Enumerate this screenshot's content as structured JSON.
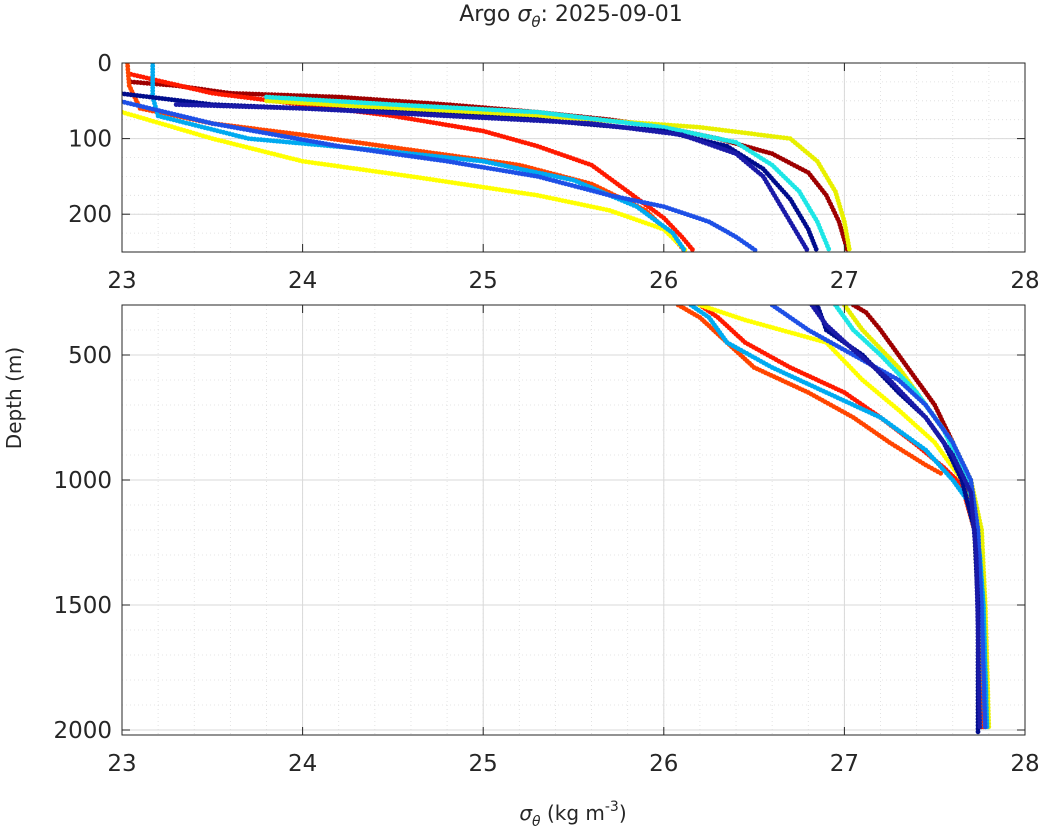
{
  "chart_data": {
    "type": "scatter",
    "title": {
      "prefix": "Argo ",
      "symbol": "σ",
      "subscript": "θ",
      "suffix": ": 2025-09-01"
    },
    "xlabel": {
      "symbol": "σ",
      "subscript": "θ",
      "units": " (kg m",
      "exponent": "-3",
      "close": ")"
    },
    "ylabel": "Depth (m)",
    "grid": true,
    "panels": [
      {
        "name": "upper",
        "xlim": [
          23,
          28
        ],
        "ylim": [
          0,
          250
        ],
        "xticks": [
          23,
          24,
          25,
          26,
          27,
          28
        ],
        "xtick_labels": [
          "23",
          "24",
          "25",
          "26",
          "27",
          "28"
        ],
        "yticks": [
          0,
          100,
          200
        ],
        "ytick_labels": [
          "0",
          "100",
          "200"
        ]
      },
      {
        "name": "lower",
        "xlim": [
          23,
          28
        ],
        "ylim": [
          300,
          2020
        ],
        "xticks": [
          23,
          24,
          25,
          26,
          27,
          28
        ],
        "xtick_labels": [
          "23",
          "24",
          "25",
          "26",
          "27",
          "28"
        ],
        "yticks": [
          500,
          1000,
          1500,
          2000
        ],
        "ytick_labels": [
          "500",
          "1000",
          "1500",
          "2000"
        ]
      }
    ],
    "series": [
      {
        "name": "profile-dark-red",
        "color": "#9e0000",
        "points": [
          [
            23.05,
            25
          ],
          [
            23.3,
            30
          ],
          [
            23.6,
            40
          ],
          [
            24.2,
            45
          ],
          [
            24.8,
            55
          ],
          [
            25.3,
            65
          ],
          [
            25.7,
            75
          ],
          [
            26.0,
            85
          ],
          [
            26.3,
            100
          ],
          [
            26.6,
            120
          ],
          [
            26.8,
            145
          ],
          [
            26.9,
            175
          ],
          [
            26.97,
            210
          ],
          [
            27.02,
            250
          ],
          [
            27.05,
            300
          ],
          [
            27.12,
            330
          ],
          [
            27.2,
            400
          ],
          [
            27.3,
            500
          ],
          [
            27.4,
            600
          ],
          [
            27.5,
            700
          ],
          [
            27.6,
            850
          ],
          [
            27.68,
            1000
          ],
          [
            27.72,
            1200
          ],
          [
            27.75,
            1500
          ],
          [
            27.76,
            2000
          ]
        ]
      },
      {
        "name": "profile-red",
        "color": "#ff1a00",
        "points": [
          [
            23.05,
            15
          ],
          [
            23.5,
            40
          ],
          [
            24.0,
            55
          ],
          [
            24.5,
            70
          ],
          [
            25.0,
            90
          ],
          [
            25.3,
            110
          ],
          [
            25.6,
            135
          ],
          [
            25.8,
            170
          ],
          [
            26.0,
            205
          ],
          [
            26.1,
            230
          ],
          [
            26.17,
            250
          ],
          [
            26.2,
            300
          ],
          [
            26.3,
            350
          ],
          [
            26.45,
            450
          ],
          [
            26.7,
            550
          ],
          [
            27.0,
            650
          ],
          [
            27.2,
            750
          ],
          [
            27.4,
            860
          ],
          [
            27.55,
            950
          ],
          [
            27.65,
            1020
          ],
          [
            27.72,
            1200
          ],
          [
            27.75,
            1500
          ],
          [
            27.77,
            2000
          ]
        ]
      },
      {
        "name": "profile-orange-red",
        "color": "#ff4500",
        "points": [
          [
            23.03,
            0
          ],
          [
            23.04,
            30
          ],
          [
            23.1,
            60
          ],
          [
            23.5,
            80
          ],
          [
            24.0,
            95
          ],
          [
            24.6,
            115
          ],
          [
            25.2,
            135
          ],
          [
            25.6,
            160
          ],
          [
            25.9,
            195
          ],
          [
            26.05,
            230
          ],
          [
            26.12,
            250
          ],
          [
            26.08,
            300
          ],
          [
            26.2,
            350
          ],
          [
            26.35,
            450
          ],
          [
            26.5,
            550
          ],
          [
            26.8,
            650
          ],
          [
            27.05,
            750
          ],
          [
            27.25,
            850
          ],
          [
            27.45,
            940
          ],
          [
            27.55,
            980
          ]
        ]
      },
      {
        "name": "profile-yellow",
        "color": "#ffff00",
        "points": [
          [
            23.0,
            65
          ],
          [
            23.5,
            100
          ],
          [
            24.0,
            130
          ],
          [
            24.6,
            150
          ],
          [
            25.3,
            175
          ],
          [
            25.7,
            195
          ],
          [
            26.0,
            220
          ],
          [
            26.13,
            250
          ],
          [
            26.2,
            300
          ],
          [
            26.45,
            360
          ],
          [
            26.9,
            450
          ],
          [
            27.1,
            600
          ],
          [
            27.3,
            720
          ],
          [
            27.5,
            850
          ],
          [
            27.65,
            1000
          ],
          [
            27.72,
            1200
          ],
          [
            27.74,
            1500
          ],
          [
            27.75,
            2000
          ]
        ]
      },
      {
        "name": "profile-bright-yellow",
        "color": "#e8f000",
        "points": [
          [
            23.8,
            50
          ],
          [
            24.5,
            60
          ],
          [
            25.3,
            70
          ],
          [
            26.2,
            85
          ],
          [
            26.7,
            100
          ],
          [
            26.85,
            130
          ],
          [
            26.95,
            170
          ],
          [
            27.0,
            210
          ],
          [
            27.03,
            250
          ],
          [
            27.0,
            300
          ],
          [
            27.1,
            400
          ],
          [
            27.3,
            550
          ],
          [
            27.45,
            700
          ],
          [
            27.6,
            850
          ],
          [
            27.7,
            1000
          ],
          [
            27.76,
            1200
          ],
          [
            27.78,
            1500
          ],
          [
            27.8,
            2000
          ]
        ]
      },
      {
        "name": "profile-cyan",
        "color": "#1ee6e6",
        "points": [
          [
            23.8,
            45
          ],
          [
            24.5,
            55
          ],
          [
            25.3,
            65
          ],
          [
            26.0,
            85
          ],
          [
            26.4,
            105
          ],
          [
            26.6,
            135
          ],
          [
            26.75,
            170
          ],
          [
            26.85,
            210
          ],
          [
            26.92,
            250
          ],
          [
            26.95,
            300
          ],
          [
            27.05,
            400
          ],
          [
            27.2,
            500
          ],
          [
            27.4,
            650
          ],
          [
            27.55,
            800
          ],
          [
            27.68,
            1000
          ],
          [
            27.74,
            1200
          ],
          [
            27.76,
            1500
          ],
          [
            27.78,
            2000
          ]
        ]
      },
      {
        "name": "profile-light-blue",
        "color": "#00aaf0",
        "points": [
          [
            23.17,
            0
          ],
          [
            23.17,
            45
          ],
          [
            23.2,
            70
          ],
          [
            23.7,
            100
          ],
          [
            24.4,
            115
          ],
          [
            25.0,
            130
          ],
          [
            25.5,
            155
          ],
          [
            25.85,
            190
          ],
          [
            26.05,
            225
          ],
          [
            26.12,
            250
          ],
          [
            26.15,
            300
          ],
          [
            26.25,
            350
          ],
          [
            26.35,
            450
          ],
          [
            26.6,
            550
          ],
          [
            26.9,
            650
          ],
          [
            27.2,
            750
          ],
          [
            27.45,
            880
          ],
          [
            27.6,
            1000
          ],
          [
            27.7,
            1100
          ],
          [
            27.75,
            1300
          ],
          [
            27.77,
            1500
          ],
          [
            27.79,
            2000
          ]
        ]
      },
      {
        "name": "profile-blue",
        "color": "#1e50e6",
        "points": [
          [
            22.98,
            50
          ],
          [
            23.5,
            80
          ],
          [
            24.2,
            110
          ],
          [
            24.8,
            130
          ],
          [
            25.3,
            150
          ],
          [
            25.7,
            175
          ],
          [
            26.0,
            190
          ],
          [
            26.25,
            210
          ],
          [
            26.4,
            230
          ],
          [
            26.52,
            250
          ],
          [
            26.6,
            300
          ],
          [
            26.8,
            400
          ],
          [
            27.05,
            500
          ],
          [
            27.3,
            600
          ],
          [
            27.45,
            700
          ],
          [
            27.6,
            850
          ],
          [
            27.7,
            1000
          ],
          [
            27.74,
            1200
          ],
          [
            27.76,
            1500
          ],
          [
            27.78,
            2000
          ]
        ]
      },
      {
        "name": "profile-dark-blue",
        "color": "#000c8c",
        "points": [
          [
            22.98,
            40
          ],
          [
            23.5,
            55
          ],
          [
            24.5,
            65
          ],
          [
            25.3,
            75
          ],
          [
            26.0,
            90
          ],
          [
            26.35,
            110
          ],
          [
            26.55,
            140
          ],
          [
            26.7,
            180
          ],
          [
            26.8,
            220
          ],
          [
            26.85,
            250
          ],
          [
            26.85,
            300
          ],
          [
            26.9,
            400
          ],
          [
            27.1,
            500
          ],
          [
            27.3,
            650
          ],
          [
            27.45,
            750
          ],
          [
            27.55,
            850
          ],
          [
            27.65,
            1000
          ],
          [
            27.72,
            1200
          ],
          [
            27.74,
            1500
          ],
          [
            27.74,
            2020
          ]
        ]
      },
      {
        "name": "profile-navy",
        "color": "#1a1aa8",
        "points": [
          [
            23.3,
            55
          ],
          [
            24.0,
            60
          ],
          [
            24.8,
            70
          ],
          [
            25.6,
            80
          ],
          [
            26.1,
            95
          ],
          [
            26.4,
            120
          ],
          [
            26.55,
            150
          ],
          [
            26.65,
            190
          ],
          [
            26.75,
            230
          ],
          [
            26.8,
            250
          ],
          [
            26.82,
            300
          ],
          [
            26.9,
            380
          ],
          [
            27.05,
            480
          ],
          [
            27.25,
            600
          ],
          [
            27.45,
            750
          ],
          [
            27.6,
            900
          ],
          [
            27.7,
            1050
          ],
          [
            27.73,
            1300
          ],
          [
            27.74,
            1600
          ],
          [
            27.75,
            2000
          ]
        ]
      }
    ]
  }
}
